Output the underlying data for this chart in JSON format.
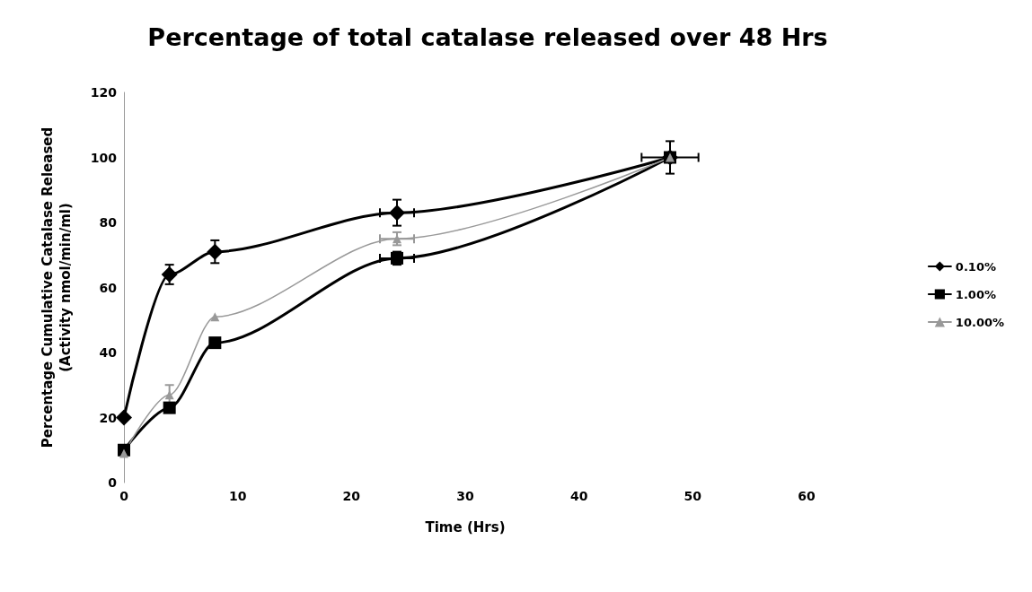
{
  "chart_data": {
    "type": "line",
    "title": "Percentage of total catalase released over 48 Hrs",
    "xlabel": "Time (Hrs)",
    "ylabel": "Percentage Cumulative Catalase Released\n(Activity nmol/min/ml)",
    "x": [
      0,
      4,
      8,
      24,
      48
    ],
    "series": [
      {
        "name": "0.10%",
        "color": "#000000",
        "marker": "diamond",
        "values": [
          20,
          64,
          71,
          83,
          100
        ],
        "errors": [
          null,
          3,
          3.5,
          4,
          5
        ],
        "xerrors": [
          null,
          null,
          null,
          1.5,
          2.5
        ]
      },
      {
        "name": "1.00%",
        "color": "#000000",
        "marker": "square",
        "values": [
          10,
          23,
          43,
          69,
          100
        ],
        "errors": [
          null,
          null,
          null,
          2,
          null
        ],
        "xerrors": [
          null,
          null,
          null,
          1.5,
          null
        ]
      },
      {
        "name": "10.00%",
        "color": "#999999",
        "marker": "triangle",
        "values": [
          9,
          27,
          51,
          75,
          100
        ],
        "errors": [
          null,
          3,
          null,
          2,
          null
        ],
        "xerrors": [
          null,
          null,
          null,
          1.5,
          null
        ]
      }
    ],
    "xlim": [
      0,
      60
    ],
    "xticks": [
      0,
      10,
      20,
      30,
      40,
      50,
      60
    ],
    "ylim": [
      0,
      120
    ],
    "yticks": [
      0,
      20,
      40,
      60,
      80,
      100,
      120
    ],
    "grid": false,
    "legend": "right",
    "line_style": "solid"
  }
}
